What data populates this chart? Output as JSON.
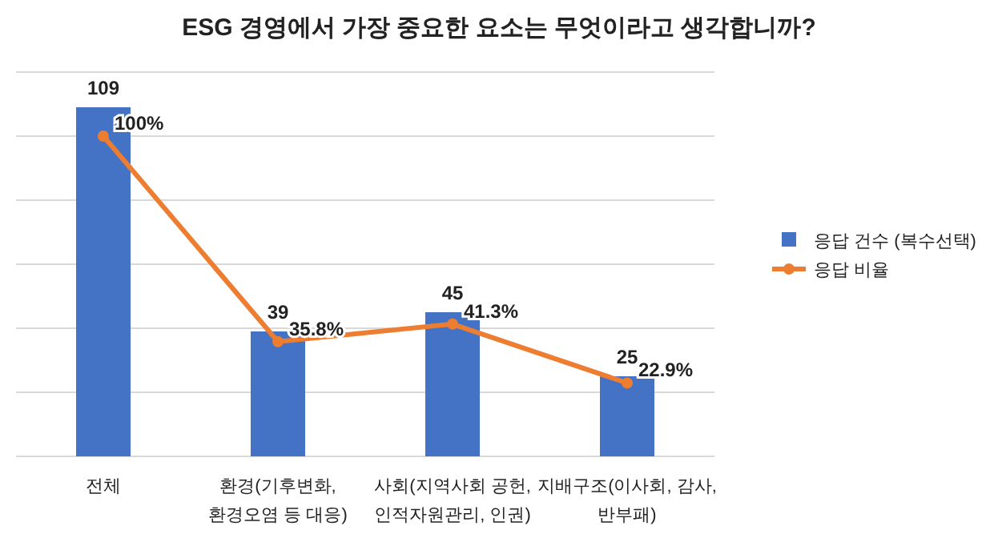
{
  "chart_data": {
    "type": "bar",
    "title": "ESG 경영에서 가장 중요한 요소는 무엇이라고 생각합니까?",
    "categories": [
      "전체",
      "환경(기후변화,\n환경오염 등 대응)",
      "사회(지역사회 공헌,\n인적자원관리, 인권)",
      "지배구조(이사회, 감사,\n반부패)"
    ],
    "series": [
      {
        "name": "응답 건수 (복수선택)",
        "color": "#4472c4",
        "values": [
          109,
          39,
          45,
          25
        ]
      },
      {
        "name": "응답 비율",
        "type": "line",
        "color": "#ed7d31",
        "marker": "circle",
        "values": [
          100,
          35.8,
          41.3,
          22.9
        ],
        "value_labels": [
          "100%",
          "35.8%",
          "41.3%",
          "22.9%"
        ]
      }
    ],
    "ylim": [
      0,
      120
    ],
    "yticks": [
      {
        "value": 0,
        "label": null
      },
      {
        "value": 20,
        "label": null
      },
      {
        "value": 40,
        "label": null
      },
      {
        "value": 60,
        "label": null
      },
      {
        "value": 80,
        "label": null
      },
      {
        "value": 100,
        "label": null
      },
      {
        "value": 120,
        "label": null
      }
    ],
    "tick_labels": "x",
    "grid": "y",
    "legend": "right",
    "data_labels": true
  }
}
